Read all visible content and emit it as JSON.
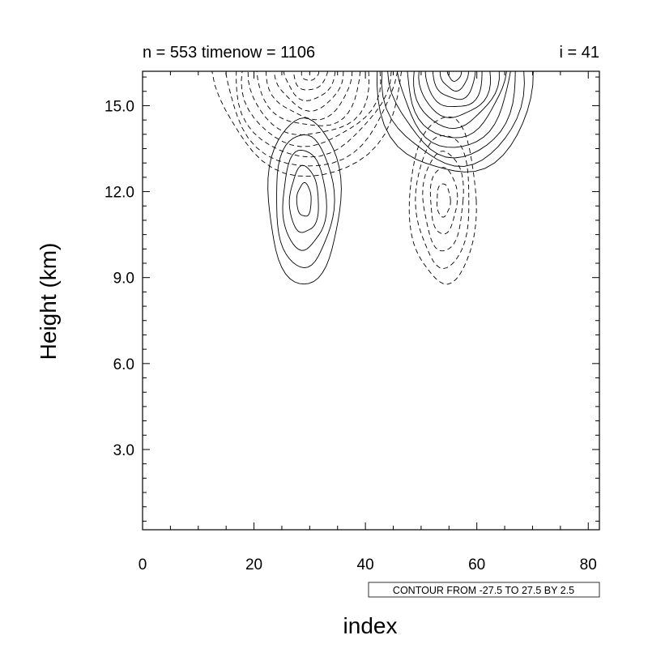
{
  "chart_data": {
    "type": "contour",
    "title_left": "n = 553 timenow = 1106",
    "title_right": "i = 41",
    "xlabel": "index",
    "ylabel": "Height (km)",
    "xlim": [
      0,
      82
    ],
    "ylim": [
      0.2,
      16.2
    ],
    "x_ticks": [
      0,
      20,
      40,
      60,
      80
    ],
    "x_tick_labels": [
      "0",
      "20",
      "40",
      "60",
      "80"
    ],
    "y_ticks": [
      3,
      6,
      9,
      12,
      15
    ],
    "y_tick_labels": [
      "3.0",
      "6.0",
      "9.0",
      "12.0",
      "15.0"
    ],
    "contour_info": "CONTOUR FROM -27.5 TO 27.5 BY 2.5",
    "contour_min": -27.5,
    "contour_max": 27.5,
    "contour_step": 2.5,
    "line_styles": {
      "negative": "dashed",
      "positive": "solid"
    },
    "features": [
      {
        "sign": "negative",
        "center": [
          30,
          16.2
        ],
        "extent_x": [
          13,
          41
        ],
        "extent_y": [
          12.6,
          16.2
        ],
        "rings": 11
      },
      {
        "sign": "positive",
        "center": [
          56,
          16.2
        ],
        "extent_x": [
          43,
          70
        ],
        "extent_y": [
          12.6,
          16.2
        ],
        "rings": 11
      },
      {
        "sign": "positive",
        "center": [
          29,
          11.7
        ],
        "extent_x": [
          23,
          35.5
        ],
        "extent_y": [
          8.8,
          12.6
        ],
        "rings": 5
      },
      {
        "sign": "negative",
        "center": [
          54,
          11.7
        ],
        "extent_x": [
          48,
          59.5
        ],
        "extent_y": [
          8.8,
          12.6
        ],
        "rings": 5
      }
    ]
  }
}
